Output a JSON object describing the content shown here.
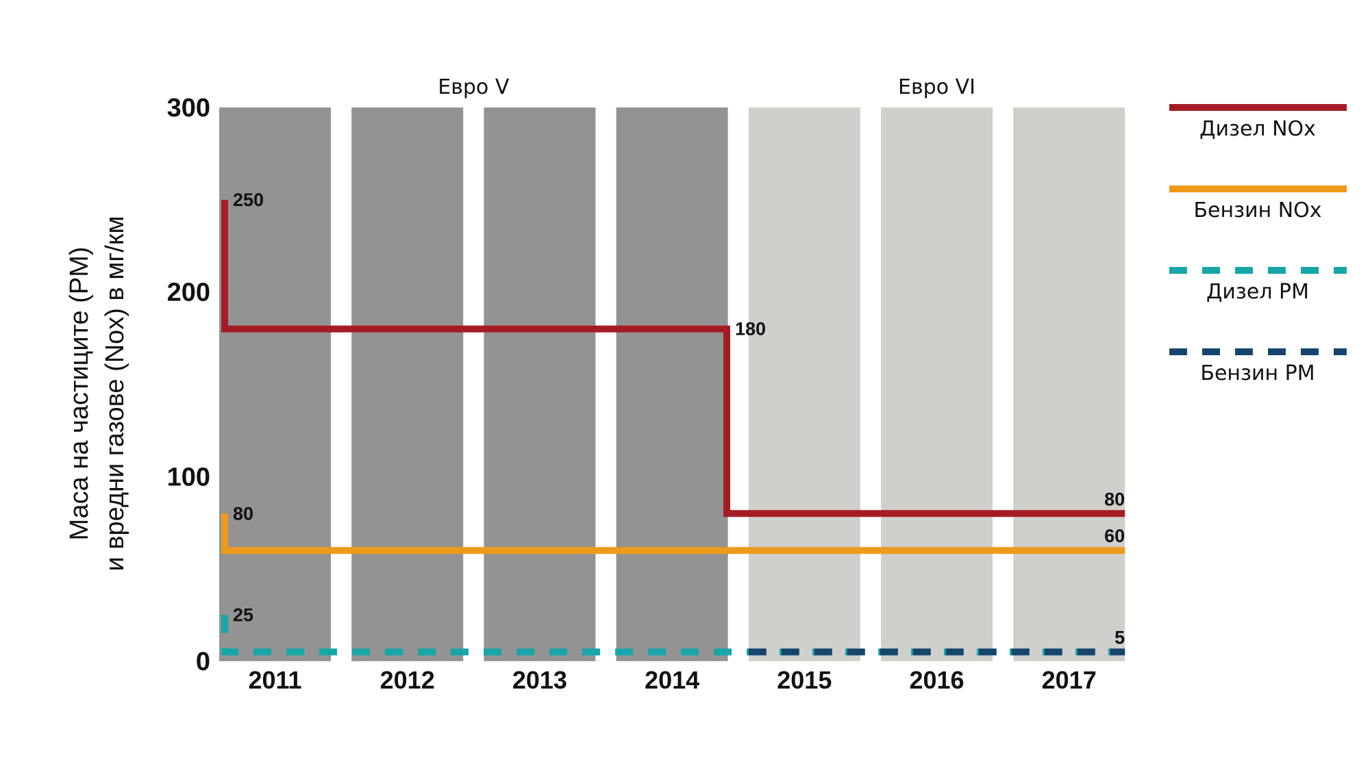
{
  "chart_data": {
    "type": "line",
    "x": [
      "2011",
      "2012",
      "2013",
      "2014",
      "2015",
      "2016",
      "2017"
    ],
    "ylabel_lines": [
      "Маса на частиците (PM)",
      "и вредни газове (Nox) в мг/км"
    ],
    "ylim": [
      0,
      300
    ],
    "yticks": [
      0,
      100,
      200,
      300
    ],
    "grid": false,
    "legend_position": "right",
    "periods": [
      {
        "label": "Евро V",
        "start": 0,
        "end": 3,
        "color": "#939393"
      },
      {
        "label": "Евро VI",
        "start": 4,
        "end": 6,
        "color": "#cfcfcb"
      }
    ],
    "series": [
      {
        "name": "Дизел NOx",
        "color": "#a51c24",
        "style": "solid",
        "points": [
          [
            0,
            250
          ],
          [
            0,
            180
          ],
          [
            3.5,
            180
          ],
          [
            3.5,
            80
          ],
          [
            6.5,
            80
          ]
        ],
        "labels": [
          {
            "text": "250",
            "x": 0,
            "y": 250,
            "anchor": "start"
          },
          {
            "text": "180",
            "x": 3.5,
            "y": 180,
            "anchor": "start"
          },
          {
            "text": "80",
            "x": 6.5,
            "y": 80,
            "anchor": "end"
          }
        ]
      },
      {
        "name": "Бензин NOx",
        "color": "#ee9a1a",
        "style": "solid",
        "points": [
          [
            0,
            80
          ],
          [
            0,
            60
          ],
          [
            6.5,
            60
          ]
        ],
        "labels": [
          {
            "text": "80",
            "x": 0,
            "y": 80,
            "anchor": "start"
          },
          {
            "text": "60",
            "x": 6.5,
            "y": 60,
            "anchor": "end"
          }
        ]
      },
      {
        "name": "Дизел PM",
        "color": "#17a6a8",
        "style": "dashed",
        "points": [
          [
            0,
            25
          ],
          [
            0,
            5
          ],
          [
            6.5,
            5
          ]
        ],
        "labels": [
          {
            "text": "25",
            "x": 0,
            "y": 25,
            "anchor": "start"
          },
          {
            "text": "5",
            "x": 6.5,
            "y": 5,
            "anchor": "end"
          }
        ]
      },
      {
        "name": "Бензин PM",
        "color": "#14466d",
        "style": "dashed",
        "points": [
          [
            4,
            5
          ],
          [
            6.5,
            5
          ]
        ],
        "labels": []
      }
    ]
  }
}
